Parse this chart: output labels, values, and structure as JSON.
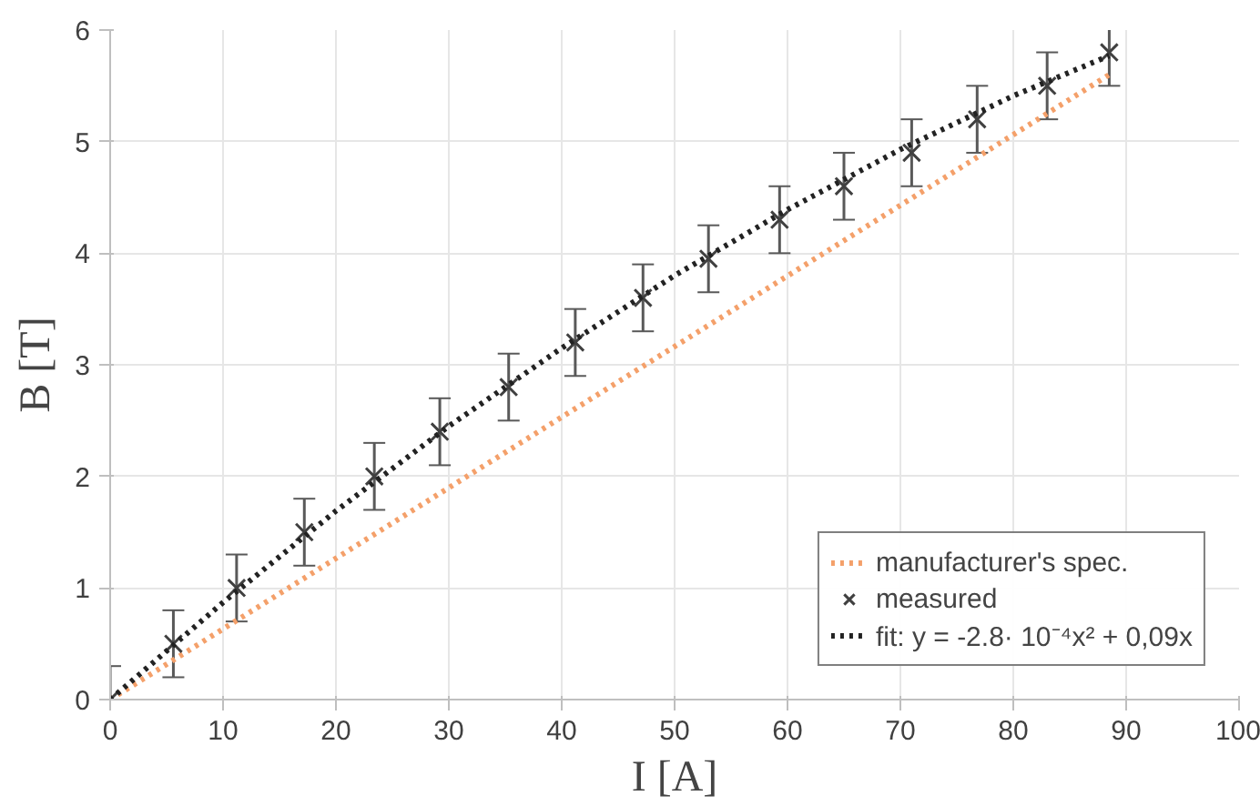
{
  "chart_data": {
    "type": "line",
    "xlabel": "I [A]",
    "ylabel": "B [T]",
    "xlim": [
      0,
      100
    ],
    "xticks": [
      0,
      10,
      20,
      30,
      40,
      50,
      60,
      70,
      80,
      90,
      100
    ],
    "ylim": [
      0,
      6
    ],
    "yticks": [
      0,
      1,
      2,
      3,
      4,
      5,
      6
    ],
    "grid": true,
    "legend": "bottom right",
    "series": [
      {
        "name": "manufacturer's spec.",
        "color": "#f4a06a",
        "line_style": "dotted",
        "marker": "none",
        "x": [
          0,
          88.5
        ],
        "values": [
          0,
          5.6
        ]
      },
      {
        "name": "measured",
        "type": "scatter",
        "color": "#404040",
        "marker": "cross",
        "x": [
          0,
          5.6,
          11.2,
          17.2,
          23.4,
          29.2,
          35.3,
          41.2,
          47.2,
          53,
          59.3,
          65,
          71,
          76.8,
          83,
          88.5
        ],
        "values": [
          0,
          0.5,
          1.0,
          1.5,
          2.0,
          2.4,
          2.8,
          3.2,
          3.6,
          3.95,
          4.3,
          4.6,
          4.9,
          5.2,
          5.5,
          5.8
        ],
        "errors": [
          0.3,
          0.3,
          0.3,
          0.3,
          0.3,
          0.3,
          0.3,
          0.3,
          0.3,
          0.3,
          0.3,
          0.3,
          0.3,
          0.3,
          0.3,
          0.3
        ]
      },
      {
        "name": "fit: y = -2.8· 10⁻⁴x² + 0,09x",
        "color": "#222222",
        "line_style": "dotted",
        "marker": "none",
        "x": [
          0,
          10,
          20,
          30,
          40,
          50,
          60,
          70,
          80,
          88.5
        ],
        "values": [
          0,
          0.87,
          1.69,
          2.45,
          3.15,
          3.8,
          4.39,
          4.93,
          5.41,
          5.77
        ]
      }
    ]
  }
}
